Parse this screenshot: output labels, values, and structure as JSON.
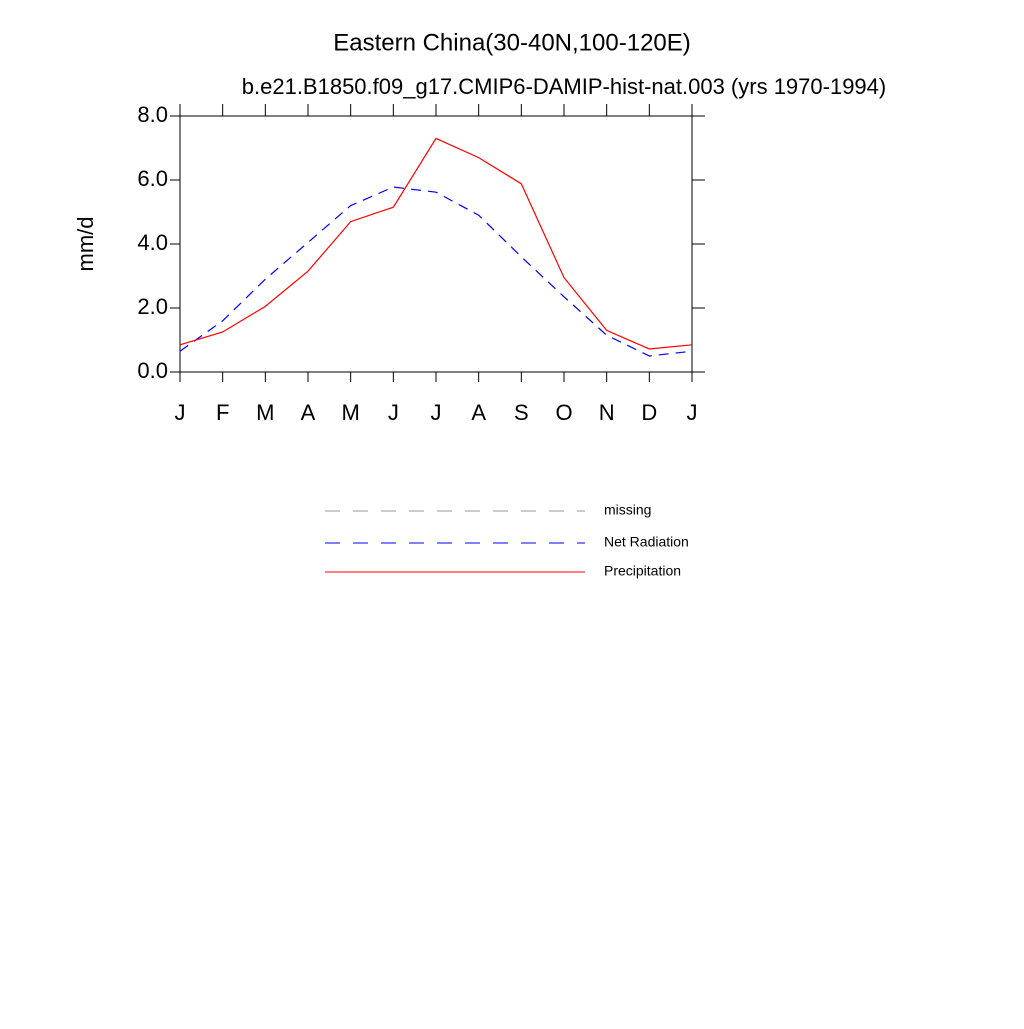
{
  "chart_data": {
    "type": "line",
    "title": "Eastern China(30-40N,100-120E)",
    "subtitle": "b.e21.B1850.f09_g17.CMIP6-DAMIP-hist-nat.003 (yrs 1970-1994)",
    "y_label": "mm/d",
    "categories": [
      "J",
      "F",
      "M",
      "A",
      "M",
      "J",
      "J",
      "A",
      "S",
      "O",
      "N",
      "D",
      "J"
    ],
    "series": [
      {
        "name": "missing",
        "color": "#999999",
        "dash": true,
        "values": [
          null,
          null,
          null,
          null,
          null,
          null,
          null,
          null,
          null,
          null,
          null,
          null,
          null
        ]
      },
      {
        "name": "Net Radiation",
        "color": "#0000ff",
        "dash": true,
        "values": [
          0.65,
          1.6,
          2.9,
          4.05,
          5.2,
          5.78,
          5.62,
          4.9,
          3.6,
          2.35,
          1.15,
          0.5,
          0.65
        ]
      },
      {
        "name": "Precipitation",
        "color": "#ff0000",
        "dash": false,
        "values": [
          0.85,
          1.25,
          2.05,
          3.15,
          4.7,
          5.15,
          7.3,
          6.7,
          5.88,
          2.95,
          1.3,
          0.72,
          0.85
        ]
      }
    ],
    "ylim": [
      0,
      8
    ],
    "yticks": [
      {
        "value": 0,
        "label": "0.0"
      },
      {
        "value": 2,
        "label": "2.0"
      },
      {
        "value": 4,
        "label": "4.0"
      },
      {
        "value": 6,
        "label": "6.0"
      },
      {
        "value": 8,
        "label": "8.0"
      }
    ],
    "grid": false
  }
}
